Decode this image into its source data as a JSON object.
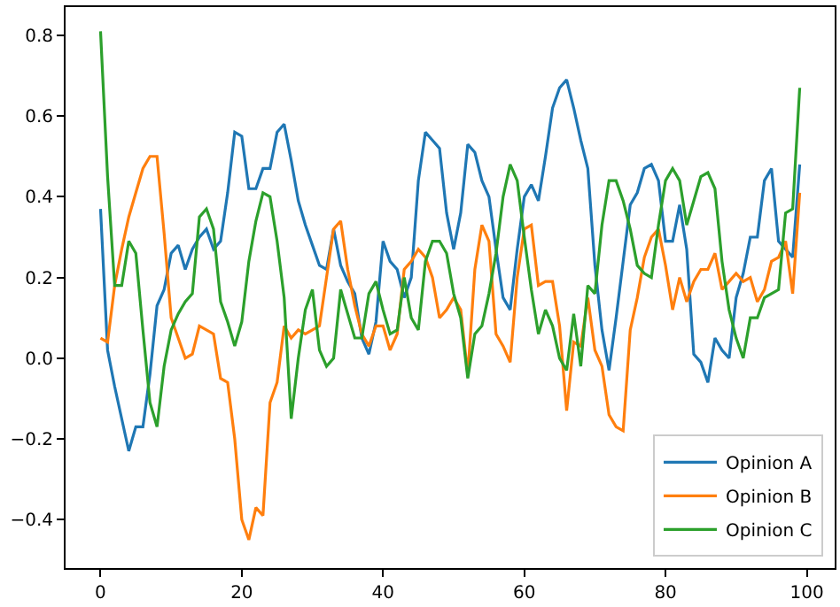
{
  "chart_data": {
    "type": "line",
    "x": [
      0,
      1,
      2,
      3,
      4,
      5,
      6,
      7,
      8,
      9,
      10,
      11,
      12,
      13,
      14,
      15,
      16,
      17,
      18,
      19,
      20,
      21,
      22,
      23,
      24,
      25,
      26,
      27,
      28,
      29,
      30,
      31,
      32,
      33,
      34,
      35,
      36,
      37,
      38,
      39,
      40,
      41,
      42,
      43,
      44,
      45,
      46,
      47,
      48,
      49,
      50,
      51,
      52,
      53,
      54,
      55,
      56,
      57,
      58,
      59,
      60,
      61,
      62,
      63,
      64,
      65,
      66,
      67,
      68,
      69,
      70,
      71,
      72,
      73,
      74,
      75,
      76,
      77,
      78,
      79,
      80,
      81,
      82,
      83,
      84,
      85,
      86,
      87,
      88,
      89,
      90,
      91,
      92,
      93,
      94,
      95,
      96,
      97,
      98,
      99
    ],
    "series": [
      {
        "name": "Opinion A",
        "color": "#1f77b4",
        "values": [
          0.37,
          0.02,
          -0.07,
          -0.15,
          -0.23,
          -0.17,
          -0.17,
          -0.04,
          0.13,
          0.17,
          0.26,
          0.28,
          0.22,
          0.27,
          0.3,
          0.32,
          0.27,
          0.29,
          0.41,
          0.56,
          0.55,
          0.42,
          0.42,
          0.47,
          0.47,
          0.56,
          0.58,
          0.49,
          0.39,
          0.33,
          0.28,
          0.23,
          0.22,
          0.32,
          0.23,
          0.19,
          0.16,
          0.05,
          0.01,
          0.09,
          0.29,
          0.24,
          0.22,
          0.15,
          0.2,
          0.44,
          0.56,
          0.54,
          0.52,
          0.36,
          0.27,
          0.36,
          0.53,
          0.51,
          0.44,
          0.4,
          0.27,
          0.15,
          0.12,
          0.27,
          0.4,
          0.43,
          0.39,
          0.5,
          0.62,
          0.67,
          0.69,
          0.62,
          0.54,
          0.47,
          0.23,
          0.07,
          -0.03,
          0.1,
          0.24,
          0.38,
          0.41,
          0.47,
          0.48,
          0.44,
          0.29,
          0.29,
          0.38,
          0.27,
          0.01,
          -0.01,
          -0.06,
          0.05,
          0.02,
          0.0,
          0.15,
          0.21,
          0.3,
          0.3,
          0.44,
          0.47,
          0.29,
          0.27,
          0.25,
          0.48
        ]
      },
      {
        "name": "Opinion B",
        "color": "#ff7f0e",
        "values": [
          0.05,
          0.04,
          0.18,
          0.27,
          0.35,
          0.41,
          0.47,
          0.5,
          0.5,
          0.31,
          0.1,
          0.05,
          0.0,
          0.01,
          0.08,
          0.07,
          0.06,
          -0.05,
          -0.06,
          -0.2,
          -0.4,
          -0.45,
          -0.37,
          -0.39,
          -0.11,
          -0.06,
          0.08,
          0.05,
          0.07,
          0.06,
          0.07,
          0.08,
          0.2,
          0.32,
          0.34,
          0.22,
          0.13,
          0.06,
          0.03,
          0.08,
          0.08,
          0.02,
          0.06,
          0.22,
          0.24,
          0.27,
          0.25,
          0.2,
          0.1,
          0.12,
          0.15,
          0.12,
          -0.04,
          0.22,
          0.33,
          0.29,
          0.06,
          0.03,
          -0.01,
          0.2,
          0.32,
          0.33,
          0.18,
          0.19,
          0.19,
          0.08,
          -0.13,
          0.04,
          0.03,
          0.15,
          0.02,
          -0.02,
          -0.14,
          -0.17,
          -0.18,
          0.07,
          0.15,
          0.25,
          0.3,
          0.32,
          0.23,
          0.12,
          0.2,
          0.14,
          0.19,
          0.22,
          0.22,
          0.26,
          0.17,
          0.19,
          0.21,
          0.19,
          0.2,
          0.14,
          0.17,
          0.24,
          0.25,
          0.29,
          0.16,
          0.41
        ]
      },
      {
        "name": "Opinion C",
        "color": "#2ca02c",
        "values": [
          0.81,
          0.45,
          0.18,
          0.18,
          0.29,
          0.26,
          0.07,
          -0.11,
          -0.17,
          -0.02,
          0.07,
          0.11,
          0.14,
          0.16,
          0.35,
          0.37,
          0.32,
          0.14,
          0.09,
          0.03,
          0.09,
          0.24,
          0.34,
          0.41,
          0.4,
          0.29,
          0.15,
          -0.15,
          0.0,
          0.12,
          0.17,
          0.02,
          -0.02,
          0.0,
          0.17,
          0.11,
          0.05,
          0.05,
          0.16,
          0.19,
          0.12,
          0.06,
          0.07,
          0.2,
          0.1,
          0.07,
          0.24,
          0.29,
          0.29,
          0.26,
          0.16,
          0.1,
          -0.05,
          0.06,
          0.08,
          0.16,
          0.26,
          0.4,
          0.48,
          0.44,
          0.3,
          0.17,
          0.06,
          0.12,
          0.08,
          0.0,
          -0.03,
          0.11,
          -0.02,
          0.18,
          0.16,
          0.33,
          0.44,
          0.44,
          0.39,
          0.32,
          0.23,
          0.21,
          0.2,
          0.33,
          0.44,
          0.47,
          0.44,
          0.33,
          0.39,
          0.45,
          0.46,
          0.42,
          0.24,
          0.12,
          0.05,
          0.0,
          0.1,
          0.1,
          0.15,
          0.16,
          0.17,
          0.36,
          0.37,
          0.67
        ]
      }
    ],
    "xlim": [
      -4.95,
      103.95
    ],
    "xticks": [
      0,
      20,
      40,
      60,
      80,
      100
    ],
    "ylim": [
      -0.52,
      0.87
    ],
    "yticks": [
      {
        "value": -0.4,
        "label": "−0.4"
      },
      {
        "value": -0.2,
        "label": "−0.2"
      },
      {
        "value": 0.0,
        "label": "0.0"
      },
      0.2,
      0.4,
      0.6,
      0.8
    ],
    "legend": "bottom right",
    "grid": false,
    "marker": "none",
    "line_style": "solid"
  }
}
